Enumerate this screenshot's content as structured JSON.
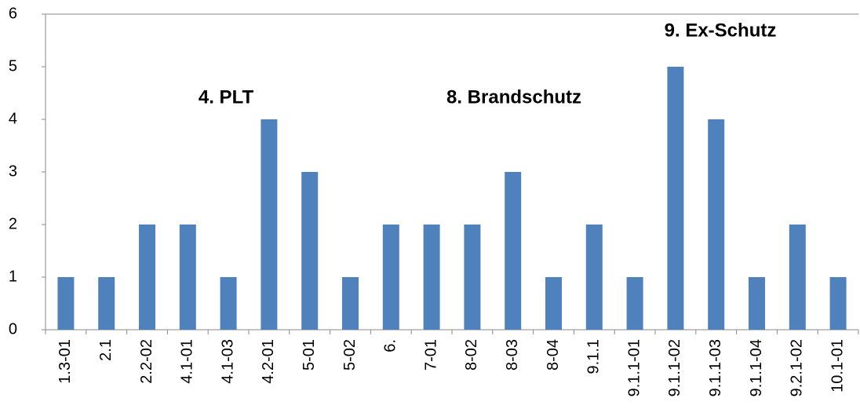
{
  "chart_data": {
    "type": "bar",
    "categories": [
      "1.3-01",
      "2.1",
      "2.2-02",
      "4.1-01",
      "4.1-03",
      "4.2-01",
      "5-01",
      "5-02",
      "6.",
      "7-01",
      "8-02",
      "8-03",
      "8-04",
      "9.1.1",
      "9.1.1-01",
      "9.1.1-02",
      "9.1.1-03",
      "9.1.1-04",
      "9.2.1-02",
      "10.1-01"
    ],
    "values": [
      1,
      1,
      2,
      2,
      1,
      4,
      3,
      1,
      2,
      2,
      2,
      3,
      1,
      2,
      1,
      5,
      4,
      1,
      2,
      1
    ],
    "color": "#4f81bd",
    "ylim": [
      0,
      6
    ],
    "yticks": [
      0,
      1,
      2,
      3,
      4,
      5,
      6
    ],
    "grid": false,
    "annotations": [
      "4. PLT",
      "8. Brandschutz",
      "9. Ex-Schutz"
    ]
  }
}
